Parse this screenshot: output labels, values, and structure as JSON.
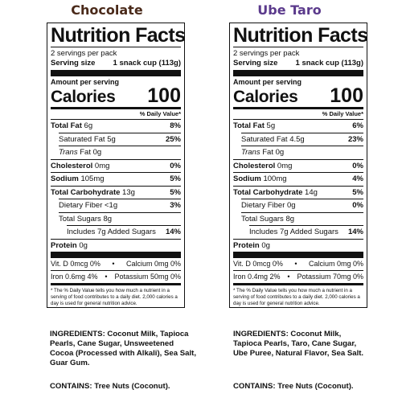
{
  "colors": {
    "chocolate_title": "#4a2a1a",
    "ube_title": "#5b3a8c",
    "ink": "#111111"
  },
  "labels": [
    {
      "flavor": "Chocolate",
      "title": "Nutrition Facts",
      "servings": "2 servings per pack",
      "serving_size_label": "Serving size",
      "serving_size_value": "1 snack cup (113g)",
      "amount_per_serving": "Amount per serving",
      "calories_label": "Calories",
      "calories_value": "100",
      "dv_header": "% Daily Value*",
      "total_fat_label": "Total Fat",
      "total_fat_amt": "6g",
      "total_fat_dv": "8%",
      "sat_fat_label": "Saturated Fat 5g",
      "sat_fat_dv": "25%",
      "trans_fat_label": "Trans",
      "trans_fat_rest": "Fat 0g",
      "cholesterol_label": "Cholesterol",
      "cholesterol_amt": "0mg",
      "cholesterol_dv": "0%",
      "sodium_label": "Sodium",
      "sodium_amt": "105mg",
      "sodium_dv": "5%",
      "carb_label": "Total Carbohydrate",
      "carb_amt": "13g",
      "carb_dv": "5%",
      "fiber_label": "Dietary Fiber <1g",
      "fiber_dv": "3%",
      "sugars_label": "Total Sugars 8g",
      "added_sugars_label": "Includes 7g Added Sugars",
      "added_sugars_dv": "14%",
      "protein_label": "Protein",
      "protein_amt": "0g",
      "vitd": "Vit. D 0mcg 0%",
      "sep1": "•",
      "calcium": "Calcium 0mg  0%",
      "iron": "Iron 0.6mg 4%",
      "sep2": "•",
      "potassium": "Potassium 50mg 0%",
      "footnote": "* The % Daily Value tells you how much a nutrient in a serving of food contributes to a daily diet. 2,000 calories a day is used for general nutrition advice.",
      "ingredients": "INGREDIENTS: Coconut Milk, Tapioca Pearls, Cane Sugar, Unsweetened Cocoa (Processed with Alkali), Sea Salt, Guar Gum.",
      "contains": "CONTAINS: Tree Nuts (Coconut)."
    },
    {
      "flavor": "Ube Taro",
      "title": "Nutrition Facts",
      "servings": "2 servings per pack",
      "serving_size_label": "Serving size",
      "serving_size_value": "1 snack cup (113g)",
      "amount_per_serving": "Amount per serving",
      "calories_label": "Calories",
      "calories_value": "100",
      "dv_header": "% Daily Value*",
      "total_fat_label": "Total Fat",
      "total_fat_amt": "5g",
      "total_fat_dv": "6%",
      "sat_fat_label": "Saturated Fat 4.5g",
      "sat_fat_dv": "23%",
      "trans_fat_label": "Trans",
      "trans_fat_rest": "Fat 0g",
      "cholesterol_label": "Cholesterol",
      "cholesterol_amt": "0mg",
      "cholesterol_dv": "0%",
      "sodium_label": "Sodium",
      "sodium_amt": "100mg",
      "sodium_dv": "4%",
      "carb_label": "Total Carbohydrate",
      "carb_amt": "14g",
      "carb_dv": "5%",
      "fiber_label": "Dietary Fiber 0g",
      "fiber_dv": "0%",
      "sugars_label": "Total Sugars 8g",
      "added_sugars_label": "Includes 7g Added Sugars",
      "added_sugars_dv": "14%",
      "protein_label": "Protein",
      "protein_amt": "0g",
      "vitd": "Vit. D 0mcg 0%",
      "sep1": "•",
      "calcium": "Calcium 0mg  0%",
      "iron": "Iron 0.4mg  2%",
      "sep2": "•",
      "potassium": "Potassium 70mg 0%",
      "footnote": "* The % Daily Value tells you how much a nutrient in a serving of food contributes to a daily diet. 2,000 calories a day is used for general nutrition advice.",
      "ingredients": "INGREDIENTS: Coconut Milk, Tapioca Pearls, Taro, Cane Sugar, Ube Puree, Natural Flavor, Sea Salt.",
      "contains": "CONTAINS: Tree Nuts (Coconut)."
    }
  ]
}
